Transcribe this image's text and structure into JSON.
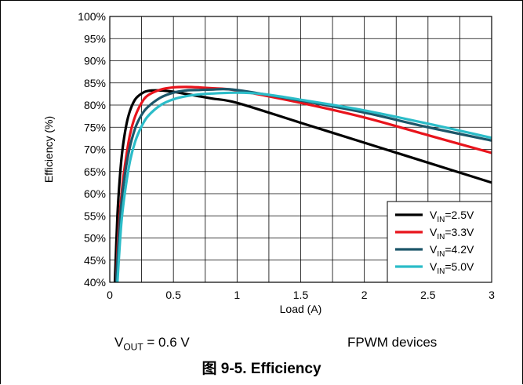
{
  "chart_data": {
    "type": "line",
    "xlabel": "Load (A)",
    "ylabel": "Efficiency (%)",
    "xlim": [
      0,
      3
    ],
    "ylim": [
      40,
      100
    ],
    "grid": true,
    "legend_position": "bottom-right",
    "x_ticks": [
      "0",
      "0.5",
      "1",
      "1.5",
      "2",
      "2.5",
      "3"
    ],
    "y_ticks": [
      "40%",
      "45%",
      "50%",
      "55%",
      "60%",
      "65%",
      "70%",
      "75%",
      "80%",
      "85%",
      "90%",
      "95%",
      "100%"
    ],
    "series": [
      {
        "label_main": "V",
        "label_sub": "IN",
        "label_rest": "=2.5V",
        "color": "#000000",
        "x": [
          0.04,
          0.06,
          0.08,
          0.1,
          0.13,
          0.16,
          0.2,
          0.25,
          0.3,
          0.4,
          0.5,
          0.6,
          0.8,
          1.0,
          1.5,
          2.0,
          2.5,
          3.0
        ],
        "y": [
          40,
          55,
          64,
          70,
          75.5,
          78.8,
          81.3,
          82.6,
          83.2,
          83.3,
          83.0,
          82.5,
          81.5,
          80.5,
          76.0,
          71.5,
          67.0,
          62.5
        ]
      },
      {
        "label_main": "V",
        "label_sub": "IN",
        "label_rest": "=3.3V",
        "color": "#e8131b",
        "x": [
          0.05,
          0.07,
          0.1,
          0.13,
          0.16,
          0.2,
          0.25,
          0.3,
          0.4,
          0.5,
          0.6,
          0.7,
          0.8,
          1.0,
          1.5,
          2.0,
          2.5,
          3.0
        ],
        "y": [
          40,
          52,
          62,
          68.5,
          73.5,
          77.5,
          80.5,
          82.2,
          83.5,
          84.0,
          84.1,
          84.0,
          83.8,
          83.3,
          80.5,
          77.2,
          73.2,
          69.2
        ]
      },
      {
        "label_main": "V",
        "label_sub": "IN",
        "label_rest": "=4.2V",
        "color": "#1c5669",
        "x": [
          0.05,
          0.08,
          0.11,
          0.15,
          0.2,
          0.25,
          0.3,
          0.4,
          0.5,
          0.6,
          0.7,
          0.8,
          1.0,
          1.5,
          2.0,
          2.5,
          3.0
        ],
        "y": [
          40,
          54,
          62.5,
          69.5,
          74.8,
          77.8,
          79.6,
          81.7,
          82.8,
          83.3,
          83.4,
          83.5,
          83.4,
          81.0,
          78.3,
          75.0,
          72.0
        ]
      },
      {
        "label_main": "V",
        "label_sub": "IN",
        "label_rest": "=5.0V",
        "color": "#2bbcc8",
        "x": [
          0.06,
          0.09,
          0.12,
          0.16,
          0.2,
          0.25,
          0.3,
          0.4,
          0.5,
          0.6,
          0.7,
          0.8,
          1.0,
          1.2,
          1.5,
          2.0,
          2.5,
          3.0
        ],
        "y": [
          40,
          53,
          60.5,
          67.5,
          71.8,
          75.2,
          77.5,
          80.0,
          81.3,
          82.0,
          82.4,
          82.6,
          82.8,
          82.5,
          81.2,
          78.8,
          75.8,
          72.6
        ]
      }
    ]
  },
  "notes": {
    "vout_main": "V",
    "vout_sub": "OUT",
    "vout_rest": " = 0.6 V",
    "mode": "FPWM devices"
  },
  "caption": "图 9-5. Efficiency"
}
